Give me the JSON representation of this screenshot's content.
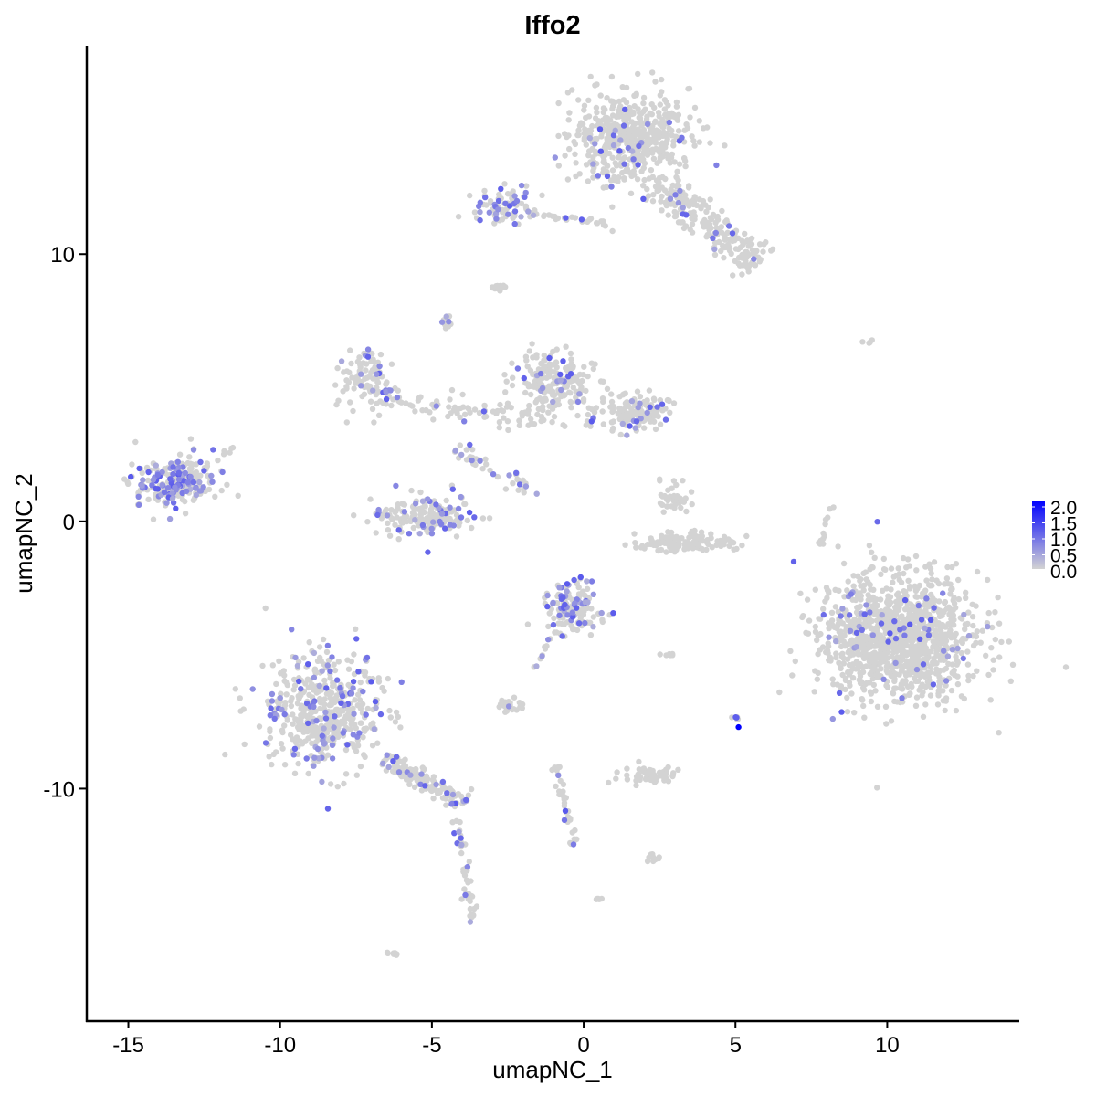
{
  "chart_data": {
    "type": "scatter",
    "title": "Iffo2",
    "xlabel": "umapNC_1",
    "ylabel": "umapNC_2",
    "xlim": [
      -16.37,
      14.32
    ],
    "ylim": [
      -18.7,
      17.8
    ],
    "xticks": [
      -15,
      -10,
      -5,
      0,
      5,
      10
    ],
    "yticks": [
      -10,
      0,
      10
    ],
    "xtick_labels": [
      "-15",
      "-10",
      "-5",
      "0",
      "5",
      "10"
    ],
    "ytick_labels": [
      "-10",
      "0",
      "10"
    ],
    "grid": false,
    "color_low": "#d3d3d3",
    "color_high": "#0000ff",
    "legend": {
      "placement": "right",
      "range": [
        0,
        2
      ],
      "labels": [
        "2.0",
        "1.5",
        "1.0",
        "0.5",
        "0.0"
      ]
    },
    "clusters": [
      {
        "shape": "blob",
        "center": [
          1.5,
          14.4
        ],
        "spread": [
          1.2,
          1.1
        ],
        "n": 500,
        "expressed_fraction": 0.05
      },
      {
        "shape": "blob",
        "center": [
          -2.5,
          11.8
        ],
        "spread": [
          0.6,
          0.45
        ],
        "n": 80,
        "expressed_fraction": 0.3
      },
      {
        "shape": "line",
        "from": [
          -1.8,
          11.5
        ],
        "to": [
          0.8,
          11.1
        ],
        "width": 0.15,
        "n": 30,
        "expressed_fraction": 0.1
      },
      {
        "shape": "line",
        "from": [
          2.4,
          12.7
        ],
        "to": [
          5.7,
          9.6
        ],
        "width": 0.55,
        "n": 220,
        "expressed_fraction": 0.08
      },
      {
        "shape": "blob",
        "center": [
          -2.8,
          8.75
        ],
        "spread": [
          0.15,
          0.12
        ],
        "n": 15,
        "expressed_fraction": 0
      },
      {
        "shape": "blob",
        "center": [
          -4.5,
          7.4
        ],
        "spread": [
          0.12,
          0.2
        ],
        "n": 12,
        "expressed_fraction": 0.3
      },
      {
        "shape": "blob",
        "center": [
          -7.2,
          5.4
        ],
        "spread": [
          0.55,
          0.75
        ],
        "n": 100,
        "expressed_fraction": 0.2
      },
      {
        "shape": "line",
        "from": [
          -6.6,
          4.5
        ],
        "to": [
          -1.2,
          3.8
        ],
        "width": 0.35,
        "n": 80,
        "expressed_fraction": 0.08
      },
      {
        "shape": "blob",
        "center": [
          -1.0,
          5.2
        ],
        "spread": [
          0.75,
          0.75
        ],
        "n": 200,
        "expressed_fraction": 0.1
      },
      {
        "shape": "blob",
        "center": [
          1.5,
          4.1
        ],
        "spread": [
          0.8,
          0.45
        ],
        "n": 150,
        "expressed_fraction": 0.12
      },
      {
        "shape": "blob",
        "center": [
          -5.2,
          0.2
        ],
        "spread": [
          1.1,
          0.5
        ],
        "n": 180,
        "expressed_fraction": 0.15
      },
      {
        "shape": "blob",
        "center": [
          -13.5,
          1.4
        ],
        "spread": [
          0.8,
          0.55
        ],
        "n": 250,
        "expressed_fraction": 0.35
      },
      {
        "shape": "line",
        "from": [
          -4.2,
          2.8
        ],
        "to": [
          -1.5,
          0.9
        ],
        "width": 0.3,
        "n": 40,
        "expressed_fraction": 0.1
      },
      {
        "shape": "blob",
        "center": [
          3.0,
          0.9
        ],
        "spread": [
          0.3,
          0.4
        ],
        "n": 40,
        "expressed_fraction": 0
      },
      {
        "shape": "blob",
        "center": [
          3.3,
          -0.8
        ],
        "spread": [
          1.1,
          0.22
        ],
        "n": 120,
        "expressed_fraction": 0
      },
      {
        "shape": "blob",
        "center": [
          10.4,
          -4.4
        ],
        "spread": [
          1.6,
          1.45
        ],
        "n": 1200,
        "expressed_fraction": 0.04
      },
      {
        "shape": "blob",
        "center": [
          -0.4,
          -3.3
        ],
        "spread": [
          0.6,
          0.6
        ],
        "n": 150,
        "expressed_fraction": 0.25
      },
      {
        "shape": "blob",
        "center": [
          -8.5,
          -7.1
        ],
        "spread": [
          1.25,
          1.35
        ],
        "n": 500,
        "expressed_fraction": 0.15
      },
      {
        "shape": "line",
        "from": [
          -6.6,
          -8.9
        ],
        "to": [
          -3.9,
          -10.6
        ],
        "width": 0.3,
        "n": 150,
        "expressed_fraction": 0.1
      },
      {
        "shape": "line",
        "from": [
          -4.2,
          -11.2
        ],
        "to": [
          -3.6,
          -15.0
        ],
        "width": 0.15,
        "n": 50,
        "expressed_fraction": 0.1
      },
      {
        "shape": "blob",
        "center": [
          -2.4,
          -6.9
        ],
        "spread": [
          0.35,
          0.15
        ],
        "n": 30,
        "expressed_fraction": 0.05
      },
      {
        "shape": "blob",
        "center": [
          2.3,
          -9.5
        ],
        "spread": [
          0.6,
          0.2
        ],
        "n": 60,
        "expressed_fraction": 0
      },
      {
        "shape": "line",
        "from": [
          -0.9,
          -9.2
        ],
        "to": [
          -0.3,
          -12.1
        ],
        "width": 0.12,
        "n": 40,
        "expressed_fraction": 0.1
      },
      {
        "shape": "blob",
        "center": [
          2.3,
          -12.6
        ],
        "spread": [
          0.15,
          0.1
        ],
        "n": 10,
        "expressed_fraction": 0
      },
      {
        "shape": "blob",
        "center": [
          2.9,
          -5.0
        ],
        "spread": [
          0.2,
          0.05
        ],
        "n": 8,
        "expressed_fraction": 0
      },
      {
        "shape": "blob",
        "center": [
          5.0,
          -7.3
        ],
        "spread": [
          0.1,
          0.1
        ],
        "n": 6,
        "expressed_fraction": 0.5
      },
      {
        "shape": "line",
        "from": [
          7.8,
          -1.0
        ],
        "to": [
          8.2,
          0.9
        ],
        "width": 0.1,
        "n": 12,
        "expressed_fraction": 0
      },
      {
        "shape": "blob",
        "center": [
          9.4,
          6.7
        ],
        "spread": [
          0.15,
          0.05
        ],
        "n": 4,
        "expressed_fraction": 0
      },
      {
        "shape": "line",
        "from": [
          -1.6,
          -5.5
        ],
        "to": [
          -1.1,
          -4.2
        ],
        "width": 0.1,
        "n": 10,
        "expressed_fraction": 0.2
      },
      {
        "shape": "blob",
        "center": [
          -6.3,
          -16.2
        ],
        "spread": [
          0.12,
          0.06
        ],
        "n": 8,
        "expressed_fraction": 0
      },
      {
        "shape": "blob",
        "center": [
          0.5,
          -14.1
        ],
        "spread": [
          0.1,
          0.05
        ],
        "n": 5,
        "expressed_fraction": 0
      },
      {
        "shape": "line",
        "from": [
          -12.5,
          2.0
        ],
        "to": [
          -11.5,
          2.8
        ],
        "width": 0.1,
        "n": 10,
        "expressed_fraction": 0
      }
    ],
    "highlight_points": [
      {
        "x": 5.1,
        "y": -7.7,
        "value": 2.0
      }
    ]
  }
}
